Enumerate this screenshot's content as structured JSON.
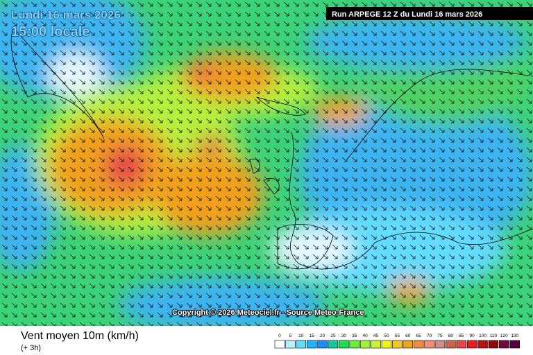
{
  "header": {
    "date": "Lundi 16 mars 2026",
    "hour": "15:00 locale",
    "run": "Run ARPEGE 12 Z du Lundi 16 mars 2026"
  },
  "map": {
    "copyright": "Copyright © 2026 Meteociel.fr - Source Meteo-France"
  },
  "footer": {
    "title": "Vent moyen 10m (km/h)",
    "step": "(+ 3h)"
  },
  "legend": {
    "ticks": [
      0,
      5,
      10,
      15,
      20,
      25,
      30,
      35,
      40,
      45,
      50,
      55,
      60,
      65,
      70,
      75,
      80,
      85,
      90,
      100,
      110,
      120,
      130
    ],
    "colors": [
      "#ffffff",
      "#b4f0ff",
      "#64dcff",
      "#1eb4ff",
      "#1e8cff",
      "#14c8a0",
      "#1edc50",
      "#64f03c",
      "#a0f03c",
      "#c8f03c",
      "#f0f028",
      "#f0c828",
      "#f0a01e",
      "#f08c3c",
      "#f08c78",
      "#d28c8c",
      "#c86450",
      "#e64646",
      "#e61e1e",
      "#b41414",
      "#8c0a0a",
      "#6e0a3c",
      "#50003c"
    ]
  }
}
